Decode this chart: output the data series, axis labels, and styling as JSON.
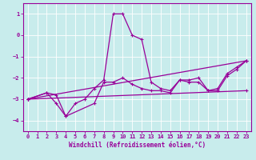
{
  "title": "",
  "xlabel": "Windchill (Refroidissement éolien,°C)",
  "ylabel": "",
  "background_color": "#c8ecec",
  "grid_color": "#b0d8d8",
  "line_color": "#990099",
  "xlim": [
    -0.5,
    23.5
  ],
  "ylim": [
    -4.5,
    1.5
  ],
  "yticks": [
    1,
    0,
    -1,
    -2,
    -3,
    -4
  ],
  "xticks": [
    0,
    1,
    2,
    3,
    4,
    5,
    6,
    7,
    8,
    9,
    10,
    11,
    12,
    13,
    14,
    15,
    16,
    17,
    18,
    19,
    20,
    21,
    22,
    23
  ],
  "series": [
    {
      "x": [
        0,
        2,
        3,
        4,
        5,
        6,
        7,
        8,
        9,
        10,
        11,
        12,
        13,
        14,
        15,
        16,
        17,
        18,
        19,
        20,
        21,
        22,
        23
      ],
      "y": [
        -3.0,
        -2.7,
        -3.2,
        -3.8,
        -3.2,
        -3.0,
        -2.5,
        -2.1,
        1.0,
        1.0,
        0.0,
        -0.2,
        -2.2,
        -2.5,
        -2.6,
        -2.1,
        -2.1,
        -2.0,
        -2.6,
        -2.5,
        -1.8,
        -1.5,
        -1.2
      ]
    },
    {
      "x": [
        0,
        2,
        3,
        4,
        7,
        8,
        9,
        10,
        11,
        12,
        13,
        14,
        15,
        16,
        17,
        18,
        19,
        20,
        21,
        22,
        23
      ],
      "y": [
        -3.0,
        -2.7,
        -2.8,
        -3.8,
        -3.2,
        -2.2,
        -2.2,
        -2.0,
        -2.3,
        -2.5,
        -2.6,
        -2.6,
        -2.7,
        -2.1,
        -2.2,
        -2.2,
        -2.6,
        -2.6,
        -1.9,
        -1.6,
        -1.2
      ]
    },
    {
      "x": [
        0,
        23
      ],
      "y": [
        -3.0,
        -1.2
      ]
    },
    {
      "x": [
        0,
        23
      ],
      "y": [
        -3.0,
        -2.6
      ]
    }
  ],
  "figsize": [
    3.2,
    2.0
  ],
  "dpi": 100,
  "tick_labelsize": 5,
  "xlabel_fontsize": 5.5,
  "spine_linewidth": 0.8,
  "line_linewidth": 0.9,
  "marker_size": 3,
  "marker_ew": 0.8
}
